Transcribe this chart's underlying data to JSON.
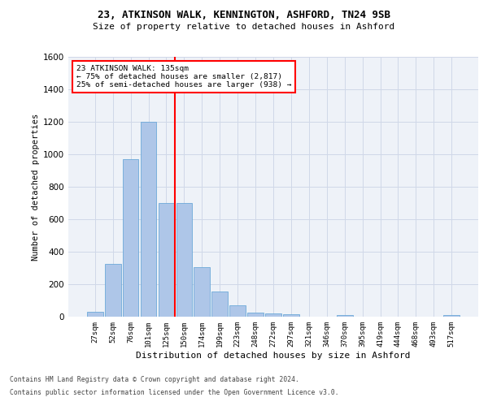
{
  "title1": "23, ATKINSON WALK, KENNINGTON, ASHFORD, TN24 9SB",
  "title2": "Size of property relative to detached houses in Ashford",
  "xlabel": "Distribution of detached houses by size in Ashford",
  "ylabel": "Number of detached properties",
  "categories": [
    "27sqm",
    "52sqm",
    "76sqm",
    "101sqm",
    "125sqm",
    "150sqm",
    "174sqm",
    "199sqm",
    "223sqm",
    "248sqm",
    "272sqm",
    "297sqm",
    "321sqm",
    "346sqm",
    "370sqm",
    "395sqm",
    "419sqm",
    "444sqm",
    "468sqm",
    "493sqm",
    "517sqm"
  ],
  "values": [
    30,
    325,
    970,
    1200,
    700,
    700,
    305,
    155,
    70,
    25,
    20,
    15,
    0,
    0,
    10,
    0,
    0,
    0,
    0,
    0,
    10
  ],
  "bar_color": "#aec6e8",
  "bar_edge_color": "#5a9fd4",
  "grid_color": "#d0d8e8",
  "background_color": "#eef2f8",
  "annotation_text_line1": "23 ATKINSON WALK: 135sqm",
  "annotation_text_line2": "← 75% of detached houses are smaller (2,817)",
  "annotation_text_line3": "25% of semi-detached houses are larger (938) →",
  "vline_color": "red",
  "ylim": [
    0,
    1600
  ],
  "yticks": [
    0,
    200,
    400,
    600,
    800,
    1000,
    1200,
    1400,
    1600
  ],
  "footnote1": "Contains HM Land Registry data © Crown copyright and database right 2024.",
  "footnote2": "Contains public sector information licensed under the Open Government Licence v3.0."
}
